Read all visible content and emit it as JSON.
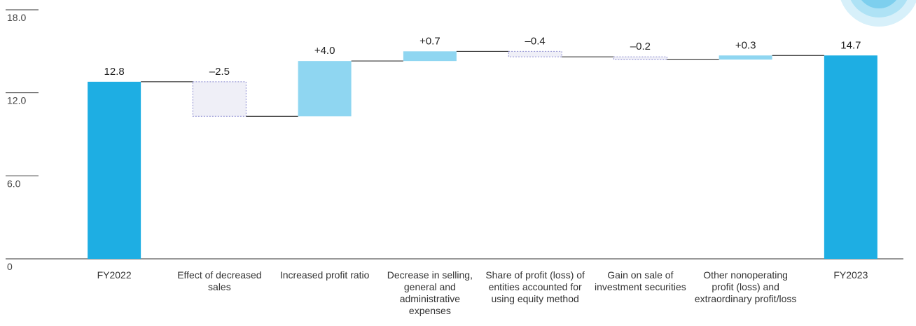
{
  "chart_data": {
    "type": "waterfall",
    "categories": [
      "FY2022",
      "Effect of decreased sales",
      "Increased profit ratio",
      "Decrease in selling, general and administrative expenses",
      "Share of profit (loss) of entities accounted for using equity method",
      "Gain on sale of investment securities",
      "Other nonoperating profit (loss) and extraordinary profit/loss",
      "FY2023"
    ],
    "values": [
      12.8,
      -2.5,
      4.0,
      0.7,
      -0.4,
      -0.2,
      0.3,
      14.7
    ],
    "value_labels": [
      "12.8",
      "–2.5",
      "+4.0",
      "+0.7",
      "–0.4",
      "–0.2",
      "+0.3",
      "14.7"
    ],
    "colors": {
      "total": "#1eaee3",
      "increase": "#8fd6f1",
      "decrease": "#efeff7"
    },
    "ylim": [
      0,
      18
    ],
    "yticks": [
      0,
      {
        "value": 6,
        "label": "6.0"
      },
      {
        "value": 12,
        "label": "12.0"
      },
      {
        "value": 18,
        "label": "18.0"
      }
    ],
    "grid": false
  }
}
